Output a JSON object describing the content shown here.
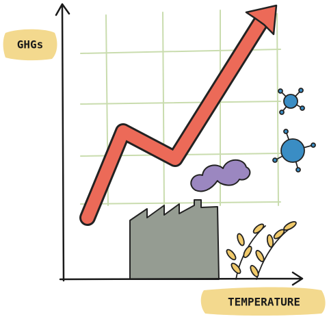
{
  "labels": {
    "y_axis": "GHGs",
    "x_axis": "TEMPERATURE"
  }
}
